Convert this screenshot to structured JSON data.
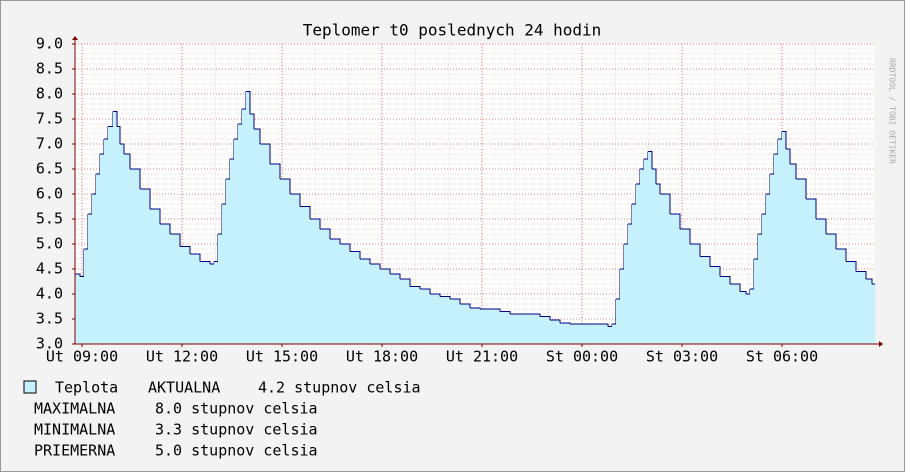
{
  "chart_data": {
    "type": "step-area",
    "title": "Teplomer t0 poslednych 24 hodin",
    "x": [
      -0.21,
      -0.06,
      0.06,
      0.18,
      0.3,
      0.42,
      0.54,
      0.66,
      0.78,
      0.93,
      1.05,
      1.14,
      1.26,
      1.44,
      1.74,
      2.04,
      2.34,
      2.64,
      2.94,
      3.24,
      3.54,
      3.84,
      3.96,
      4.08,
      4.2,
      4.32,
      4.44,
      4.56,
      4.68,
      4.8,
      4.92,
      5.04,
      5.16,
      5.34,
      5.64,
      5.94,
      6.24,
      6.54,
      6.84,
      7.14,
      7.44,
      7.74,
      8.04,
      8.34,
      8.64,
      8.94,
      9.24,
      9.54,
      9.84,
      10.14,
      10.44,
      10.74,
      11.04,
      11.34,
      11.64,
      11.94,
      12.24,
      12.54,
      12.84,
      13.14,
      13.44,
      13.74,
      14.04,
      14.34,
      14.64,
      14.94,
      15.24,
      15.54,
      15.78,
      15.9,
      16.02,
      16.14,
      16.26,
      16.38,
      16.5,
      16.62,
      16.74,
      16.86,
      16.98,
      17.1,
      17.22,
      17.34,
      17.64,
      17.94,
      18.24,
      18.54,
      18.84,
      19.14,
      19.44,
      19.74,
      19.92,
      20.04,
      20.16,
      20.28,
      20.4,
      20.52,
      20.64,
      20.76,
      20.88,
      21.0,
      21.12,
      21.24,
      21.42,
      21.72,
      22.02,
      22.32,
      22.62,
      22.92,
      23.22,
      23.52,
      23.7
    ],
    "series": [
      {
        "name": "Teplota",
        "color": "#000080",
        "fill": "#c4f1fb",
        "values": [
          4.4,
          4.35,
          4.9,
          5.6,
          6.0,
          6.4,
          6.8,
          7.1,
          7.35,
          7.65,
          7.35,
          7.0,
          6.8,
          6.5,
          6.1,
          5.7,
          5.4,
          5.2,
          4.95,
          4.8,
          4.65,
          4.6,
          4.65,
          5.2,
          5.8,
          6.3,
          6.7,
          7.1,
          7.4,
          7.7,
          8.05,
          7.6,
          7.3,
          7.0,
          6.6,
          6.3,
          6.0,
          5.75,
          5.5,
          5.3,
          5.1,
          5.0,
          4.85,
          4.7,
          4.6,
          4.5,
          4.4,
          4.3,
          4.15,
          4.1,
          4.0,
          3.95,
          3.9,
          3.8,
          3.72,
          3.7,
          3.7,
          3.65,
          3.6,
          3.6,
          3.6,
          3.55,
          3.48,
          3.42,
          3.4,
          3.4,
          3.4,
          3.4,
          3.35,
          3.4,
          3.9,
          4.5,
          5.0,
          5.4,
          5.8,
          6.2,
          6.5,
          6.7,
          6.85,
          6.5,
          6.2,
          6.0,
          5.6,
          5.3,
          5.0,
          4.75,
          4.55,
          4.35,
          4.2,
          4.05,
          4.0,
          4.1,
          4.7,
          5.2,
          5.6,
          6.0,
          6.4,
          6.8,
          7.1,
          7.25,
          6.9,
          6.6,
          6.3,
          5.9,
          5.5,
          5.2,
          4.9,
          4.65,
          4.45,
          4.3,
          4.2
        ]
      }
    ],
    "xlim": [
      -0.21,
      23.79
    ],
    "xticks": [
      {
        "value": 0,
        "label": "Ut 09:00"
      },
      {
        "value": 3,
        "label": "Ut 12:00"
      },
      {
        "value": 6,
        "label": "Ut 15:00"
      },
      {
        "value": 9,
        "label": "Ut 18:00"
      },
      {
        "value": 12,
        "label": "Ut 21:00"
      },
      {
        "value": 15,
        "label": "St 00:00"
      },
      {
        "value": 18,
        "label": "St 03:00"
      },
      {
        "value": 21,
        "label": "St 06:00"
      }
    ],
    "ylim": [
      3,
      9
    ],
    "yticks": [
      {
        "value": 3,
        "label": "3.0"
      },
      3.5,
      {
        "value": 4,
        "label": "4.0"
      },
      4.5,
      {
        "value": 5,
        "label": "5.0"
      },
      5.5,
      {
        "value": 6,
        "label": "6.0"
      },
      6.5,
      {
        "value": 7,
        "label": "7.0"
      },
      7.5,
      {
        "value": 8,
        "label": "8.0"
      },
      8.5,
      {
        "value": 9,
        "label": "9.0"
      }
    ],
    "grid": true,
    "legend": {
      "current_label": "AKTUALNA",
      "current": "4.2 stupnov celsia",
      "stats": [
        {
          "label": "MAXIMALNA",
          "value": "8.0 stupnov celsia"
        },
        {
          "label": "MINIMALNA",
          "value": "3.3 stupnov celsia"
        },
        {
          "label": "PRIEMERNA",
          "value": "5.0 stupnov celsia"
        }
      ]
    },
    "watermark": "RRDTOOL / TOBI OETIKER"
  }
}
